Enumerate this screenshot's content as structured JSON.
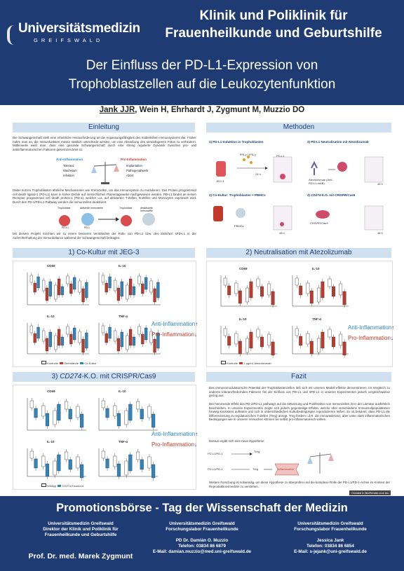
{
  "header": {
    "logo_word": "Universitätsmedizin",
    "logo_sub": "GREIFSWALD",
    "clinic_line1": "Klinik und Poliklinik für",
    "clinic_line2": "Frauenheilkunde und Geburtshilfe",
    "title_line1": "Der Einfluss der PD-L1-Expression von",
    "title_line2": "Trophoblastzellen auf die Leukozytenfunktion"
  },
  "authors": {
    "first": "Jank JJR",
    "rest": ", Wein H, Ehrhardt J, Zygmunt M, Muzzio DO"
  },
  "intro": {
    "heading": "Einleitung",
    "p1": "Die Schwangerschaft stellt eine erhebliche Herausforderung an die Anpassungsfähigkeit des mütterlichen Immunsystems dar. Früher nahm man an, die Immunfunktion müsse stattlich unterdrückt werden, um eine Abstoßung des semiallogenen Fötus zu verhindern. Mittlerweile weiß man, dass eine gesunde Schwangerschaft durch eine streng regulierte Dynamik zwischen pro- und antiinflammatorischen Faktoren gekennzeichnet ist.",
    "anti_label": "Anti-Inflammation",
    "anti_items": [
      "Toleranz",
      "Wachstum",
      "Infektion"
    ],
    "pro_label": "Pro-Inflammation",
    "pro_items": [
      "Implantation",
      "Pathogenabwehr",
      "Abort"
    ],
    "p2": "Dabei nutzen Trophoblasten ähnliche Mechanismen wie Krebszellen, um das Immunsystem zu modulieren. Das Protein programmed cell death ligand-1 (PD-L1) kann in hoher Dichte auf menschlichen Plazentagewebe nachgewiesen werden. PD-L1 bindet an seinen Rezeptor programmed cell death protein-1 (PD-1), welcher u.a. auf aktivierten T-Zellen, B-Zellen und Monozyten exprimiert wird. Durch den PD-1/PD-L1-Pathway werden die Immunzellen deaktiviert.",
    "diag_labels": [
      "Trophoblast",
      "aktivierte Immunzelle",
      "Trophoblast",
      "deaktivierte Immunzelle",
      "PD-L1",
      "PD-1"
    ],
    "p3": "Mit diesem Projekt möchten wir zu einem besseren Verständnis der Rolle von PD-L1 bzw. des löslichen sPD-L1 in der Aufrechterhaltung der Immunbalance während der Schwangerschaft beitragen."
  },
  "methods": {
    "heading": "Methoden",
    "m1": "1) PD-L1-Induktion in Trophoblasten",
    "m1_labels": [
      "JEG-3",
      "IFN-γ / IFN-γ",
      "24 h",
      "PD-L1"
    ],
    "m2": "2) Co-Kultur: Trophoblasten + PBMCs",
    "m2_labels": [
      "PBMCs",
      "48 h"
    ],
    "m3": "3) PD-L1 Neutralisation mit Atezolizumab",
    "m3_labels": [
      "Atezolizumab (Anti-PD-L1-mAB)",
      "48 h"
    ],
    "m4_pre": "4) ",
    "m4_gene": "CD274",
    "m4_post": "-K.O. mit CRISPR/Cas9",
    "m4_labels": [
      "CRISPR/Cas9",
      "48 h"
    ]
  },
  "s1": {
    "heading": "1) Co-Kultur mit JEG-3",
    "panels": [
      "CD69",
      "IL-10",
      "IL-10",
      "TNF-α"
    ],
    "legend": [
      "Kontrolle",
      "Überstände",
      "Co-Kultur"
    ]
  },
  "s2": {
    "heading": "2) Neutralisation mit Atezolizumab",
    "panels": [
      "CD69",
      "IL-10",
      "IL-10",
      "TNF-α"
    ],
    "legend": [
      "Kontrolle",
      "1 µg/mL Atezolizumab"
    ]
  },
  "s3": {
    "heading_pre": "3) ",
    "heading_gene": "CD274",
    "heading_post": "-K.O. mit CRISPR/Cas9",
    "panels": [
      "CD69",
      "IL-10",
      "IL-10",
      "TNF-α"
    ],
    "legend": [
      "Wildtyp",
      "CD274 Knockout"
    ]
  },
  "antipro": {
    "anti": "Anti-Inflammation",
    "pro": "Pro-Inflammation",
    "up": "↑",
    "down": "↓"
  },
  "fazit": {
    "heading": "Fazit",
    "p1": "Das immunomodulatorische Potential der Trophoblastenzellen ließ sich mit unseren Modell effektiv demonstrieren. Im Vergleich zu anderen toleranzfördernden Faktoren fiel der Einfluss von PD-L1 und sPD-L1 in unseren Experimenten jedoch vergleichsweise gering aus.",
    "p2": "Der hemmende Effekt des PD-1/PD-L1 pathways auf die Aktivierung und Proliferation von Immunzellen ist in der Literatur ausführlich beschrieben. In unseren Experimenten zeigte sich jedoch gegenteilige Effekte, welche über verschiedene Immunzellpopulationen hinweg konsistent auftraten und sich in unterschiedlichen Kulturbedingungen reproduzieren ließen. Es ist bekannt, dass PD-L1 die Differenzierung zu regulatorischen T-Zellen (Treg) anregt. Treg fördern i.d.R. die Immuntoleranz, aber unter stark inflammatorischen Bedingungen wie in unseren Versuchen können sie selbst pro-inflammatorisch wirken.",
    "p3": "Daraus ergibt sich eine neue Hypothese:",
    "hyp_labels": [
      "PD-L1/PD-1",
      "Treg",
      "PD-L1/PD-1",
      "Treg",
      "Inflammation"
    ],
    "p4": "Weitere Forschung ist notwendig, um diese Hypothese zu überprüfen und die komplexe Rolle der PD-L1/PD-1-Achse im Kontext der Reproduktionsmedizin zu verstehen."
  },
  "badge": "Created in BioRender.com bio",
  "footer": {
    "title": "Promotionsbörse - Tag der Wissenschaft der Medizin",
    "col1": [
      "Universitätsmedizin Greifswald",
      "Direktor der Klinik und Poliklinik für",
      "Frauenheilkunde und Geburtshilfe"
    ],
    "prof": "Prof. Dr. med. Marek Zygmunt",
    "col2": [
      "Universitätsmedizin Greifswald",
      "Forschungslabor Frauenheilkunde",
      "",
      "PD Dr. Damián O. Muzzio",
      "Telefon: 03834 86 6879",
      "E-Mail: damian.muzzio@med.uni-greifswald.de"
    ],
    "col3": [
      "Universitätsmedizin Greifswald",
      "Forschungslabor Frauenheilkunde",
      "",
      "Jessica Jank",
      "Telefon: 03834 86 6854",
      "E-Mail: s-jejank@uni-greifswald.de"
    ]
  },
  "colors": {
    "navy": "#1f3b73",
    "light": "#cfe0f0",
    "blue": "#2e86c1",
    "red": "#c0392b"
  }
}
